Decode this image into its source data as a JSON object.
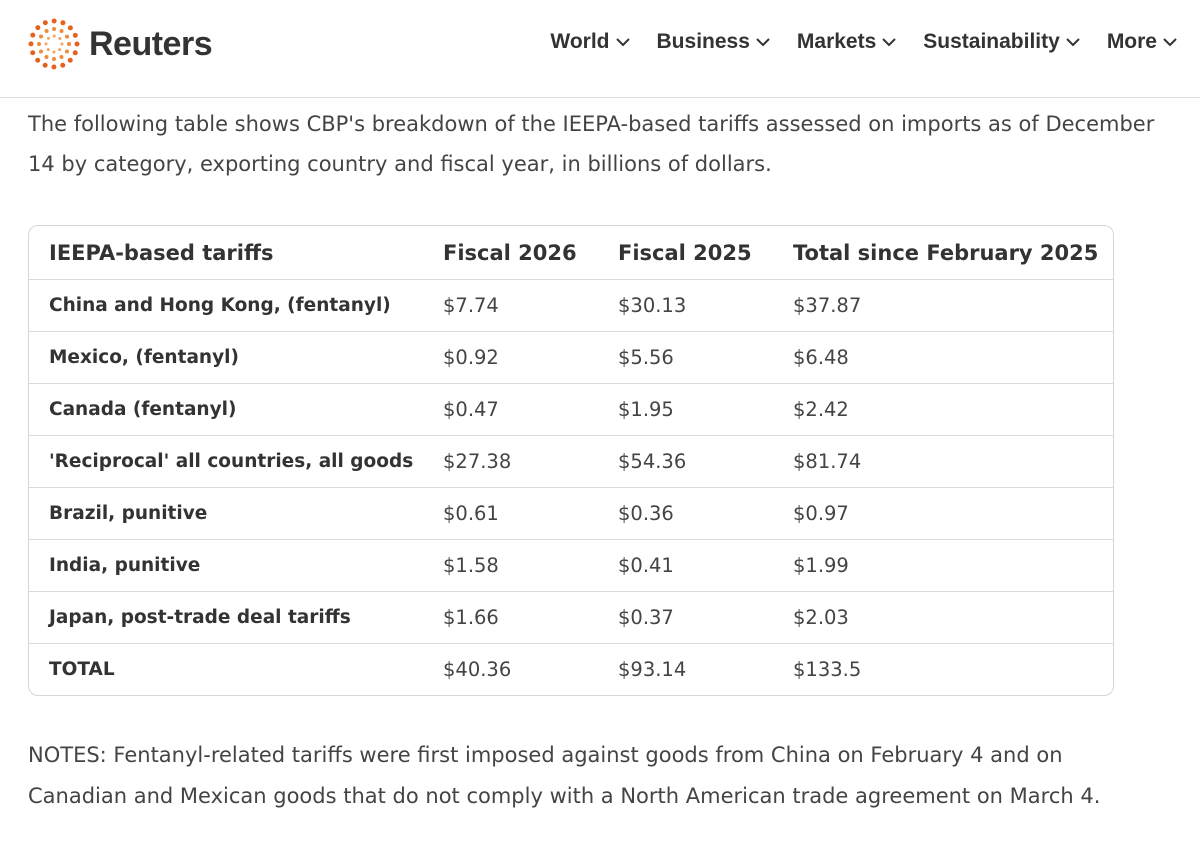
{
  "header": {
    "logo": "Reuters",
    "nav": [
      "World",
      "Business",
      "Markets",
      "Sustainability",
      "More"
    ]
  },
  "intro": "The following table shows CBP's breakdown of the IEEPA-based tariffs assessed on imports as of December 14 by category, exporting country and fiscal year, in billions of dollars.",
  "table": {
    "columns": [
      "IEEPA-based tariffs",
      "Fiscal 2026",
      "Fiscal 2025",
      "Total since February 2025"
    ],
    "rows": [
      [
        "China and Hong Kong, (fentanyl)",
        "$7.74",
        "$30.13",
        "$37.87"
      ],
      [
        "Mexico, (fentanyl)",
        "$0.92",
        "$5.56",
        "$6.48"
      ],
      [
        "Canada (fentanyl)",
        "$0.47",
        "$1.95",
        "$2.42"
      ],
      [
        "'Reciprocal' all countries, all goods",
        "$27.38",
        "$54.36",
        "$81.74"
      ],
      [
        "Brazil, punitive",
        "$0.61",
        "$0.36",
        "$0.97"
      ],
      [
        "India, punitive",
        "$1.58",
        "$0.41",
        "$1.99"
      ],
      [
        "Japan, post-trade deal tariffs",
        "$1.66",
        "$0.37",
        "$2.03"
      ],
      [
        "TOTAL",
        "$40.36",
        "$93.14",
        "$133.5"
      ]
    ]
  },
  "notes": "NOTES: Fentanyl-related tariffs were first imposed against goods from China on February 4 and on Canadian and Mexican goods that do not comply with a North American trade agreement on March 4."
}
